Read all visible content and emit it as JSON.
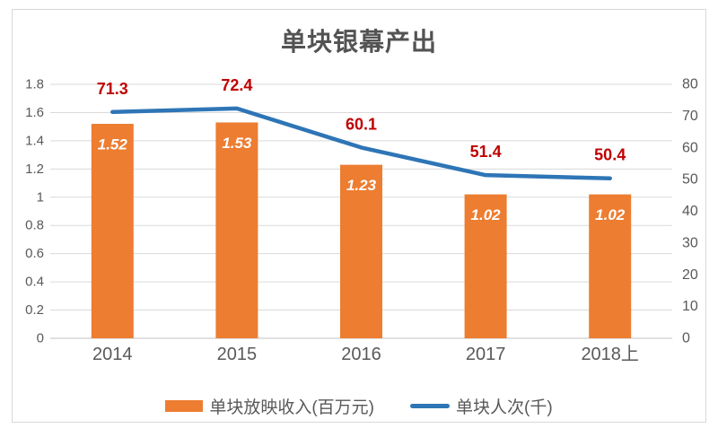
{
  "chart_data": {
    "type": "combo-bar-line",
    "title": "单块银幕产出",
    "categories": [
      "2014",
      "2015",
      "2016",
      "2017",
      "2018上"
    ],
    "series": [
      {
        "name": "单块放映收入(百万元)",
        "type": "bar",
        "axis": "left",
        "values": [
          1.52,
          1.53,
          1.23,
          1.02,
          1.02
        ],
        "labels": [
          "1.52",
          "1.53",
          "1.23",
          "1.02",
          "1.02"
        ],
        "color": "#ED7D31",
        "label_color": "#FFFFFF"
      },
      {
        "name": "单块人次(千)",
        "type": "line",
        "axis": "right",
        "values": [
          71.3,
          72.4,
          60.1,
          51.4,
          50.4
        ],
        "labels": [
          "71.3",
          "72.4",
          "60.1",
          "51.4",
          "50.4"
        ],
        "color": "#2E75B6",
        "label_color": "#C00000"
      }
    ],
    "left_axis": {
      "min": 0,
      "max": 1.8,
      "step": 0.2,
      "tick_labels": [
        "1.8",
        "1.6",
        "1.4",
        "1.2",
        "1",
        "0.8",
        "0.6",
        "0.4",
        "0.2",
        "0"
      ]
    },
    "right_axis": {
      "min": 0,
      "max": 80,
      "step": 10,
      "tick_labels": [
        "80",
        "70",
        "60",
        "50",
        "40",
        "30",
        "20",
        "10",
        "0"
      ]
    },
    "grid": true,
    "legend_position": "bottom"
  },
  "colors": {
    "bar": "#ED7D31",
    "line": "#2E75B6",
    "data_label_red": "#C00000",
    "axis_text": "#595959",
    "gridline": "#D9D9D9",
    "axis_line": "#C0C0C0",
    "title_text": "#535353",
    "frame_border": "#D9D9D9"
  },
  "legend": {
    "items": [
      {
        "label": "单块放映收入(百万元)",
        "swatch": "bar",
        "color": "#ED7D31"
      },
      {
        "label": "单块人次(千)",
        "swatch": "line",
        "color": "#2E75B6"
      }
    ]
  }
}
